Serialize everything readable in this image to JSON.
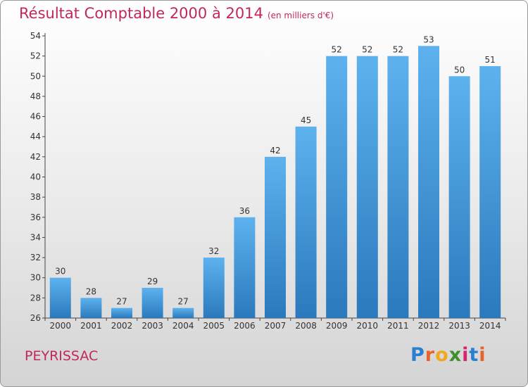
{
  "title": "Résultat Comptable 2000 à 2014",
  "subtitle": "(en milliers d'€)",
  "commune": "PEYRISSAC",
  "logo": {
    "letters": [
      "P",
      "r",
      "o",
      "x",
      "i",
      "t",
      "i"
    ],
    "colors": [
      "#2a7fd0",
      "#e8632b",
      "#f0a91e",
      "#3f8f2e",
      "#d6246e",
      "#2a7fd0",
      "#e8632b"
    ]
  },
  "colors": {
    "title": "#c0285b",
    "bar_top": "#5db2ee",
    "bar_bottom": "#2a79bd"
  },
  "chart_data": {
    "type": "bar",
    "title": "Résultat Comptable 2000 à 2014",
    "subtitle": "(en milliers d'€)",
    "categories": [
      "2000",
      "2001",
      "2002",
      "2003",
      "2004",
      "2005",
      "2006",
      "2007",
      "2008",
      "2009",
      "2010",
      "2011",
      "2012",
      "2013",
      "2014"
    ],
    "values": [
      30,
      28,
      27,
      29,
      27,
      32,
      36,
      42,
      45,
      52,
      52,
      52,
      53,
      50,
      51
    ],
    "ylim": [
      26,
      54
    ],
    "yticks": [
      26,
      28,
      30,
      32,
      34,
      36,
      38,
      40,
      42,
      44,
      46,
      48,
      50,
      52,
      54
    ],
    "grid": false,
    "data_labels": true
  }
}
